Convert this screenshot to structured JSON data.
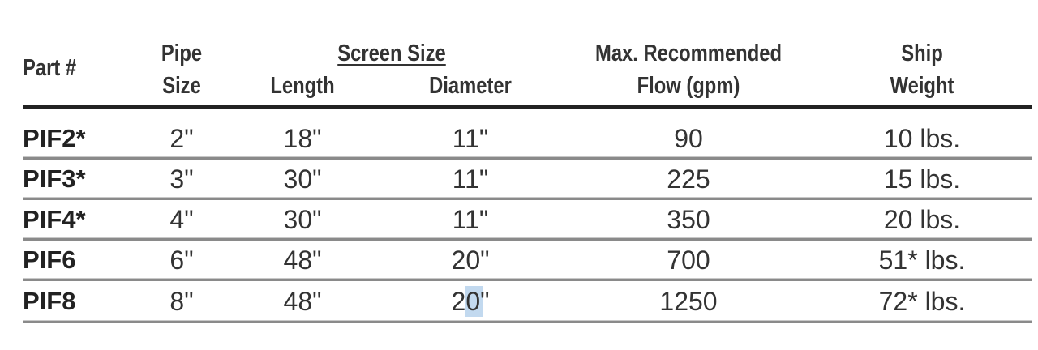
{
  "headers": {
    "part": "Part #",
    "pipe_line1": "Pipe",
    "pipe_line2": "Size",
    "screen_size": "Screen Size",
    "length": "Length",
    "diameter": "Diameter",
    "flow_line1": "Max. Recommended",
    "flow_line2": "Flow (gpm)",
    "weight_line1": "Ship",
    "weight_line2": "Weight"
  },
  "rows": [
    {
      "part": "PIF2*",
      "pipe": "2\"",
      "length": "18\"",
      "diameter": "11\"",
      "flow": "90",
      "weight": "10 lbs."
    },
    {
      "part": "PIF3*",
      "pipe": "3\"",
      "length": "30\"",
      "diameter": "11\"",
      "flow": "225",
      "weight": "15 lbs."
    },
    {
      "part": "PIF4*",
      "pipe": "4\"",
      "length": "30\"",
      "diameter": "11\"",
      "flow": "350",
      "weight": "20 lbs."
    },
    {
      "part": "PIF6",
      "pipe": "6\"",
      "length": "48\"",
      "diameter": "20\"",
      "flow": "700",
      "weight": "51* lbs."
    },
    {
      "part": "PIF8",
      "pipe": "8\"",
      "length": "48\"",
      "diameter": "20\"",
      "flow": "1250",
      "weight": "72* lbs."
    }
  ],
  "selection_color": "#78aadc"
}
